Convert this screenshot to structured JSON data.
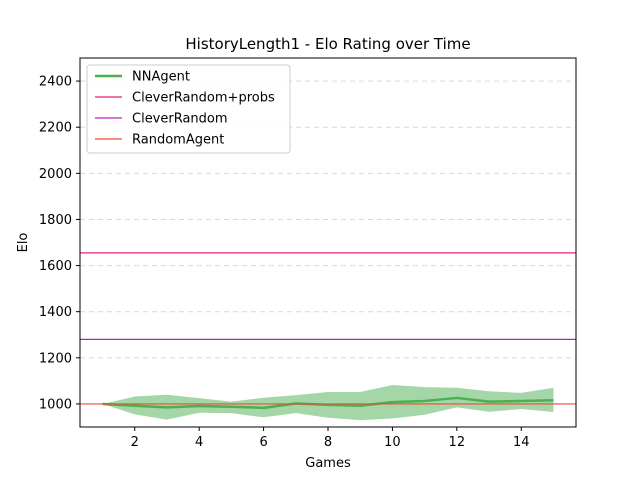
{
  "chart_data": {
    "type": "line",
    "title": "HistoryLength1 - Elo Rating over Time",
    "xlabel": "Games",
    "ylabel": "Elo",
    "xlim": [
      0.3,
      15.7
    ],
    "ylim": [
      900,
      2500
    ],
    "xticks": [
      2,
      4,
      6,
      8,
      10,
      12,
      14
    ],
    "yticks": [
      1000,
      1200,
      1400,
      1600,
      1800,
      2000,
      2200,
      2400
    ],
    "grid": "y-dashed",
    "legend_position": "top-left",
    "series": [
      {
        "name": "NNAgent",
        "kind": "line_with_band",
        "color": "#4caf50",
        "band_color": "#a5d6a7",
        "x": [
          1,
          2,
          3,
          4,
          5,
          6,
          7,
          8,
          9,
          10,
          11,
          12,
          13,
          14,
          15
        ],
        "y": [
          1000,
          992,
          985,
          991,
          988,
          983,
          1002,
          996,
          992,
          1008,
          1013,
          1026,
          1010,
          1013,
          1016
        ],
        "y_upper": [
          1000,
          1032,
          1040,
          1025,
          1010,
          1027,
          1038,
          1052,
          1052,
          1082,
          1073,
          1070,
          1055,
          1048,
          1070
        ],
        "y_lower": [
          1000,
          955,
          932,
          962,
          960,
          942,
          960,
          940,
          930,
          937,
          953,
          985,
          966,
          978,
          965
        ]
      },
      {
        "name": "CleverRandom+probs",
        "kind": "hline",
        "color": "#e91e7a",
        "y": 1655
      },
      {
        "name": "CleverRandom",
        "kind": "hline",
        "color": "#b620c0",
        "y": 1280
      },
      {
        "name": "RandomAgent",
        "kind": "hline",
        "color": "#f04a3a",
        "y": 1000
      }
    ]
  }
}
